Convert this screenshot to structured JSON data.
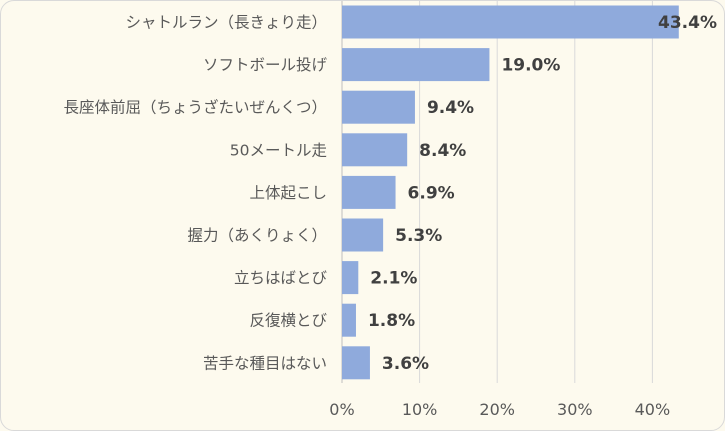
{
  "chart_data": {
    "type": "bar",
    "orientation": "horizontal",
    "categories": [
      "シャトルラン（長きょり走）",
      "ソフトボール投げ",
      "長座体前屈（ちょうざたいぜんくつ）",
      "50メートル走",
      "上体起こし",
      "握力（あくりょく）",
      "立ちはばとび",
      "反復横とび",
      "苦手な種目はない"
    ],
    "values": [
      43.4,
      19.0,
      9.4,
      8.4,
      6.9,
      5.3,
      2.1,
      1.8,
      3.6
    ],
    "value_labels": [
      "43.4%",
      "19.0%",
      "9.4%",
      "8.4%",
      "6.9%",
      "5.3%",
      "2.1%",
      "1.8%",
      "3.6%"
    ],
    "ticks": [
      0,
      10,
      20,
      30,
      40
    ],
    "tick_labels": [
      "0%",
      "10%",
      "20%",
      "30%",
      "40%"
    ],
    "xlim": [
      0,
      45
    ],
    "grid": true,
    "legend": "none",
    "bar_color": "#8faadc",
    "background_color": "#fdfaee"
  }
}
